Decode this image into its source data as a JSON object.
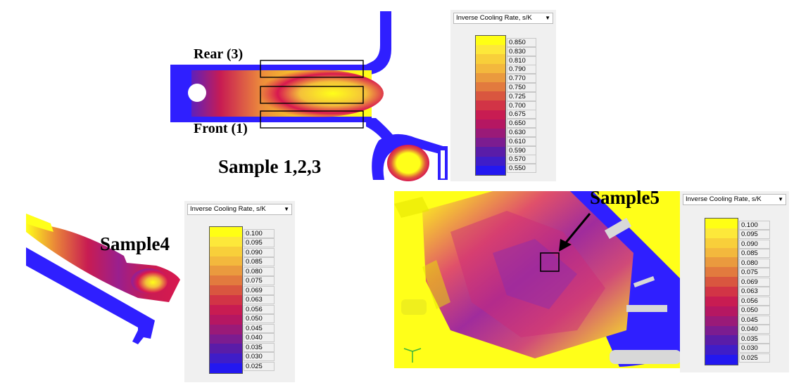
{
  "colors": {
    "blue": "#2f1fff",
    "yellow": "#ffff19",
    "orange": "#f2b33a",
    "red": "#d8184f",
    "magenta": "#9a1f8e",
    "grey": "#d8d8d8"
  },
  "panels": {
    "top": {
      "sample_label": "Sample 1,2,3",
      "rear_label": "Rear (3)",
      "front_label": "Front (1)",
      "legend": {
        "title": "Inverse Cooling Rate, s/K",
        "values": [
          "0.850",
          "0.830",
          "0.810",
          "0.790",
          "0.770",
          "0.750",
          "0.725",
          "0.700",
          "0.675",
          "0.650",
          "0.630",
          "0.610",
          "0.590",
          "0.570",
          "0.550"
        ]
      }
    },
    "left": {
      "sample_label": "Sample4",
      "legend": {
        "title": "Inverse Cooling Rate, s/K",
        "values": [
          "0.100",
          "0.095",
          "0.090",
          "0.085",
          "0.080",
          "0.075",
          "0.069",
          "0.063",
          "0.056",
          "0.050",
          "0.045",
          "0.040",
          "0.035",
          "0.030",
          "0.025"
        ]
      }
    },
    "right": {
      "sample_label": "Sample5",
      "legend": {
        "title": "Inverse Cooling Rate, s/K",
        "values": [
          "0.100",
          "0.095",
          "0.090",
          "0.085",
          "0.080",
          "0.075",
          "0.069",
          "0.063",
          "0.056",
          "0.050",
          "0.045",
          "0.040",
          "0.035",
          "0.030",
          "0.025"
        ]
      }
    }
  },
  "legend_colors": [
    "#ffff14",
    "#fde83a",
    "#f8cf3a",
    "#f3b83d",
    "#ea9a3e",
    "#e27a3e",
    "#d9563f",
    "#d23446",
    "#c81c52",
    "#b51762",
    "#9a1a78",
    "#7c1c90",
    "#5a1ca8",
    "#3f1dc8",
    "#2318f0"
  ]
}
